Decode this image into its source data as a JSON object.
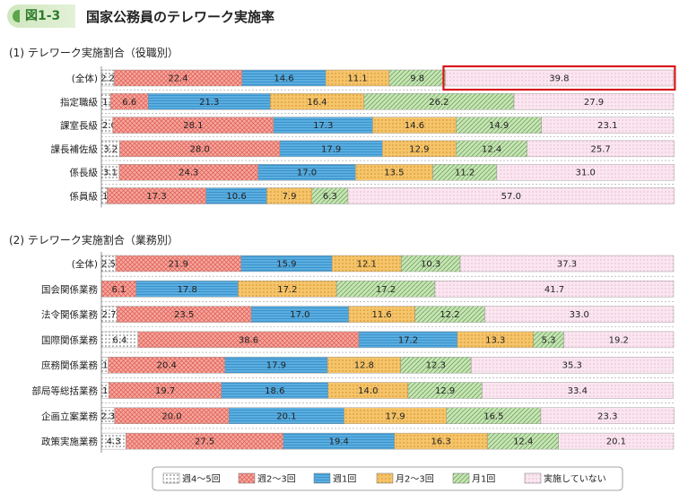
{
  "figure": {
    "number": "図1-3",
    "title": "国家公務員のテレワーク実施率"
  },
  "colors": {
    "week4to5": "#ffffff",
    "week2to3": "#f4a8a0",
    "week1": "#5aaee0",
    "month2to3": "#f6c46a",
    "month1": "#c8e4b6",
    "none": "#fbe6f0",
    "highlight": "#d9161b"
  },
  "legend": {
    "items": [
      {
        "key": "week4to5",
        "label": "週4～5回"
      },
      {
        "key": "week2to3",
        "label": "週2～3回"
      },
      {
        "key": "week1",
        "label": "週1回"
      },
      {
        "key": "month2to3",
        "label": "月2～3回"
      },
      {
        "key": "month1",
        "label": "月1回"
      },
      {
        "key": "none",
        "label": "実施していない"
      }
    ]
  },
  "chart_data": [
    {
      "type": "bar",
      "orientation": "horizontal",
      "stacked": true,
      "title": "(1) テレワーク実施割合（役職別）",
      "xlim": [
        0,
        100
      ],
      "grid": false,
      "legend_position": "bottom",
      "highlighted": {
        "category": "(全体)",
        "series": "実施していない"
      },
      "categories": [
        "(全体)",
        "指定職級",
        "課室長級",
        "課長補佐級",
        "係長級",
        "係員級"
      ],
      "series": [
        {
          "name": "週4～5回",
          "key": "week4to5",
          "values": [
            2.2,
            1.6,
            2.0,
            3.2,
            3.1,
            1.0
          ]
        },
        {
          "name": "週2～3回",
          "key": "week2to3",
          "values": [
            22.4,
            6.6,
            28.1,
            28.0,
            24.3,
            17.3
          ]
        },
        {
          "name": "週1回",
          "key": "week1",
          "values": [
            14.6,
            21.3,
            17.3,
            17.9,
            17.0,
            10.6
          ]
        },
        {
          "name": "月2～3回",
          "key": "month2to3",
          "values": [
            11.1,
            16.4,
            14.6,
            12.9,
            13.5,
            7.9
          ]
        },
        {
          "name": "月1回",
          "key": "month1",
          "values": [
            9.8,
            26.2,
            14.9,
            12.4,
            11.2,
            6.3
          ]
        },
        {
          "name": "実施していない",
          "key": "none",
          "values": [
            39.8,
            27.9,
            23.1,
            25.7,
            31.0,
            57.0
          ]
        }
      ]
    },
    {
      "type": "bar",
      "orientation": "horizontal",
      "stacked": true,
      "title": "(2) テレワーク実施割合（業務別）",
      "xlim": [
        0,
        100
      ],
      "grid": false,
      "legend_position": "bottom",
      "categories": [
        "(全体)",
        "国会関係業務",
        "法令関係業務",
        "国際関係業務",
        "庶務関係業務",
        "部局等総括業務",
        "企画立案業務",
        "政策実施業務"
      ],
      "series": [
        {
          "name": "週4～5回",
          "key": "week4to5",
          "values": [
            2.5,
            0.0,
            2.7,
            6.4,
            1.2,
            1.3,
            2.3,
            4.3
          ]
        },
        {
          "name": "週2～3回",
          "key": "week2to3",
          "values": [
            21.9,
            6.1,
            23.5,
            38.6,
            20.4,
            19.7,
            20.0,
            27.5
          ]
        },
        {
          "name": "週1回",
          "key": "week1",
          "values": [
            15.9,
            17.8,
            17.0,
            17.2,
            17.9,
            18.6,
            20.1,
            19.4
          ]
        },
        {
          "name": "月2～3回",
          "key": "month2to3",
          "values": [
            12.1,
            17.2,
            11.6,
            13.3,
            12.8,
            14.0,
            17.9,
            16.3
          ]
        },
        {
          "name": "月1回",
          "key": "month1",
          "values": [
            10.3,
            17.2,
            12.2,
            5.3,
            12.3,
            12.9,
            16.5,
            12.4
          ]
        },
        {
          "name": "実施していない",
          "key": "none",
          "values": [
            37.3,
            41.7,
            33.0,
            19.2,
            35.3,
            33.4,
            23.3,
            20.1
          ]
        }
      ]
    }
  ]
}
